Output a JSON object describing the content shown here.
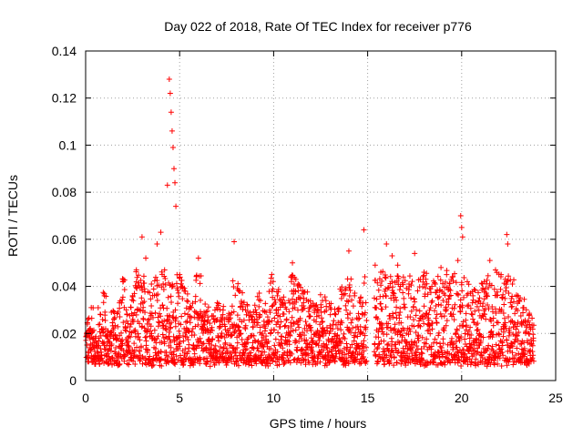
{
  "chart_data": {
    "type": "scatter",
    "title": "Day 022 of 2018, Rate Of TEC Index for receiver p776",
    "xlabel": "GPS time / hours",
    "ylabel": "ROTI / TECUs",
    "xlim": [
      0,
      25
    ],
    "ylim": [
      0,
      0.14
    ],
    "xticks": [
      0,
      5,
      10,
      15,
      20,
      25
    ],
    "xtick_labels": [
      "0",
      "5",
      "10",
      "15",
      "20",
      "25"
    ],
    "yticks": [
      0,
      0.02,
      0.04,
      0.06,
      0.08,
      0.1,
      0.12,
      0.14
    ],
    "ytick_labels": [
      "0",
      "0.02",
      "0.04",
      "0.06",
      "0.08",
      "0.1",
      "0.12",
      "0.14"
    ],
    "grid": true,
    "marker": "plus",
    "color": "#ff0000",
    "data_gaps_hours": [
      [
        14.95,
        15.35
      ],
      [
        23.85,
        25
      ]
    ],
    "series": [
      {
        "name": "ROTI",
        "x": [
          0.1,
          0.3,
          0.5,
          0.8,
          1.0,
          1.2,
          1.5,
          1.8,
          2.0,
          2.2,
          2.5,
          2.7,
          3.0,
          3.2,
          3.5,
          3.8,
          4.0,
          4.2,
          4.35,
          4.45,
          4.5,
          4.55,
          4.6,
          4.65,
          4.7,
          4.75,
          4.8,
          5.0,
          5.3,
          5.6,
          6.0,
          6.3,
          6.5,
          6.8,
          7.0,
          7.3,
          7.6,
          7.9,
          8.2,
          8.5,
          8.8,
          9.0,
          9.3,
          9.6,
          9.9,
          10.2,
          10.5,
          10.8,
          11.0,
          11.3,
          11.6,
          12.0,
          12.3,
          12.6,
          13.0,
          13.3,
          13.6,
          14.0,
          14.3,
          14.6,
          14.8,
          15.4,
          15.7,
          16.0,
          16.3,
          16.6,
          16.9,
          17.2,
          17.5,
          17.8,
          18.0,
          18.3,
          18.6,
          18.9,
          19.2,
          19.5,
          19.8,
          19.95,
          20.0,
          20.05,
          20.3,
          20.6,
          20.9,
          21.2,
          21.5,
          21.8,
          22.1,
          22.4,
          22.45,
          22.7,
          23.0,
          23.3,
          23.6
        ],
        "y": [
          0.024,
          0.031,
          0.018,
          0.028,
          0.036,
          0.021,
          0.026,
          0.033,
          0.043,
          0.028,
          0.036,
          0.047,
          0.061,
          0.052,
          0.041,
          0.058,
          0.063,
          0.047,
          0.083,
          0.128,
          0.122,
          0.114,
          0.106,
          0.099,
          0.09,
          0.084,
          0.074,
          0.045,
          0.038,
          0.031,
          0.052,
          0.029,
          0.027,
          0.026,
          0.033,
          0.028,
          0.025,
          0.059,
          0.038,
          0.03,
          0.027,
          0.032,
          0.034,
          0.029,
          0.045,
          0.036,
          0.032,
          0.034,
          0.05,
          0.041,
          0.035,
          0.032,
          0.029,
          0.034,
          0.031,
          0.028,
          0.038,
          0.055,
          0.036,
          0.033,
          0.064,
          0.049,
          0.046,
          0.058,
          0.053,
          0.049,
          0.044,
          0.041,
          0.054,
          0.043,
          0.046,
          0.039,
          0.041,
          0.048,
          0.045,
          0.044,
          0.051,
          0.07,
          0.065,
          0.061,
          0.042,
          0.036,
          0.034,
          0.042,
          0.051,
          0.047,
          0.045,
          0.062,
          0.058,
          0.041,
          0.036,
          0.031,
          0.028
        ]
      }
    ]
  }
}
